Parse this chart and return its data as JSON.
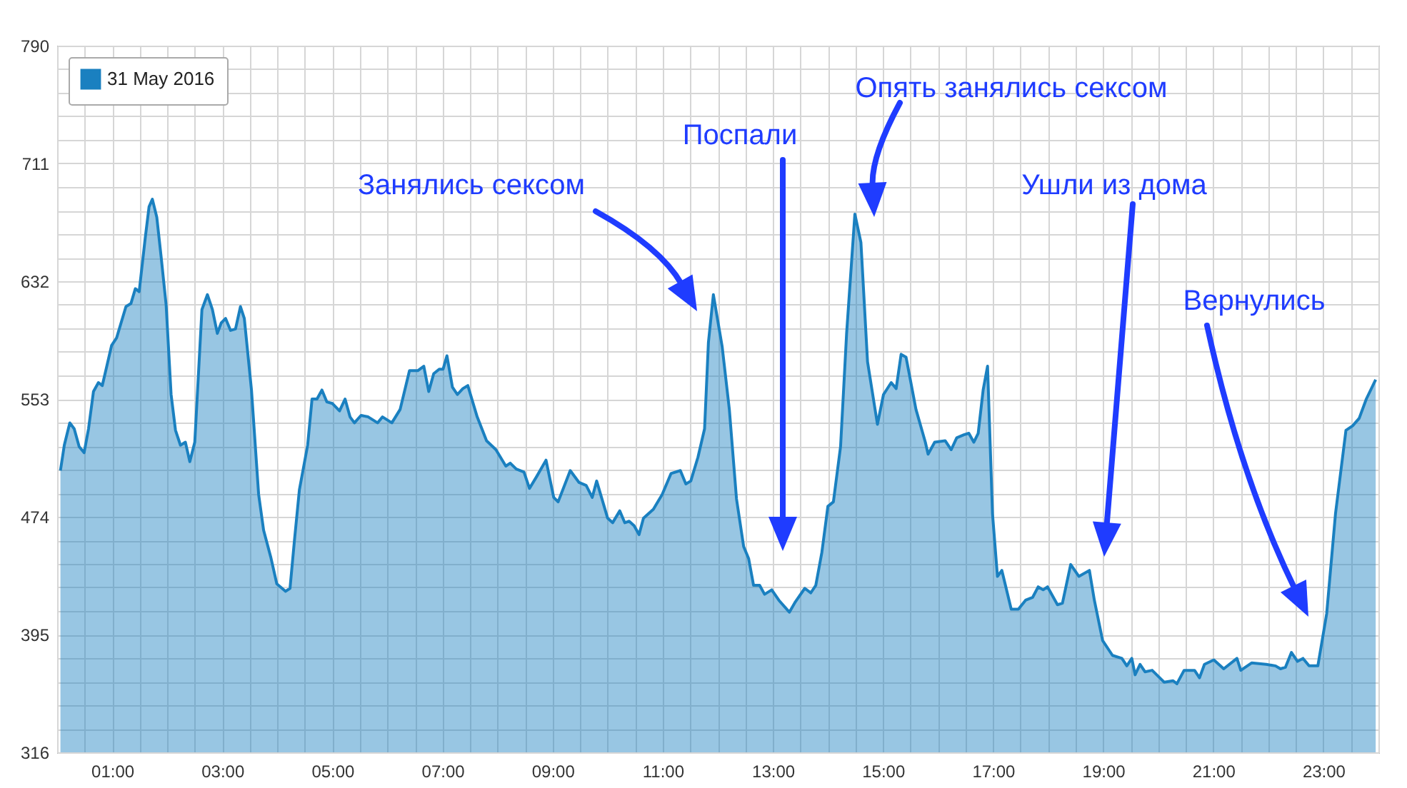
{
  "chart_data": {
    "type": "area",
    "x": [
      0.06,
      0.13,
      0.23,
      0.31,
      0.4,
      0.49,
      0.57,
      0.66,
      0.75,
      0.82,
      0.99,
      1.08,
      1.25,
      1.34,
      1.42,
      1.49,
      1.6,
      1.67,
      1.73,
      1.81,
      1.89,
      1.98,
      2.07,
      2.15,
      2.24,
      2.33,
      2.41,
      2.5,
      2.63,
      2.73,
      2.82,
      2.91,
      2.98,
      3.06,
      3.15,
      3.24,
      3.33,
      3.4,
      3.53,
      3.66,
      3.75,
      3.88,
      3.99,
      4.15,
      4.23,
      4.31,
      4.4,
      4.55,
      4.63,
      4.72,
      4.81,
      4.9,
      5.0,
      5.13,
      5.23,
      5.32,
      5.4,
      5.52,
      5.65,
      5.82,
      5.91,
      6.08,
      6.23,
      6.4,
      6.55,
      6.66,
      6.75,
      6.84,
      6.94,
      7.01,
      7.08,
      7.18,
      7.27,
      7.37,
      7.46,
      7.63,
      7.8,
      7.97,
      8.15,
      8.23,
      8.34,
      8.48,
      8.58,
      8.71,
      8.88,
      9.02,
      9.1,
      9.32,
      9.48,
      9.61,
      9.72,
      9.8,
      10.0,
      10.09,
      10.22,
      10.31,
      10.39,
      10.48,
      10.57,
      10.65,
      10.83,
      10.99,
      11.15,
      11.32,
      11.42,
      11.51,
      11.64,
      11.76,
      11.83,
      11.92,
      12.08,
      12.21,
      12.34,
      12.47,
      12.56,
      12.65,
      12.76,
      12.85,
      12.98,
      13.11,
      13.3,
      13.41,
      13.58,
      13.69,
      13.78,
      13.89,
      14.0,
      14.1,
      14.23,
      14.34,
      14.49,
      14.6,
      14.72,
      14.9,
      15.01,
      15.15,
      15.24,
      15.33,
      15.42,
      15.6,
      15.77,
      15.82,
      15.94,
      16.13,
      16.24,
      16.34,
      16.47,
      16.56,
      16.65,
      16.73,
      16.82,
      16.9,
      16.99,
      17.08,
      17.16,
      17.33,
      17.46,
      17.59,
      17.72,
      17.82,
      17.91,
      17.99,
      18.17,
      18.26,
      18.41,
      18.56,
      18.75,
      18.84,
      18.99,
      19.17,
      19.34,
      19.43,
      19.52,
      19.58,
      19.67,
      19.76,
      19.89,
      20.11,
      20.27,
      20.34,
      20.47,
      20.66,
      20.75,
      20.84,
      21.01,
      21.19,
      21.43,
      21.5,
      21.7,
      21.96,
      22.13,
      22.22,
      22.31,
      22.42,
      22.53,
      22.63,
      22.74,
      22.9,
      23.06,
      23.22,
      23.41,
      23.53,
      23.65,
      23.78,
      23.95
    ],
    "series": [
      {
        "name": "31 May 2016",
        "color": "#1a80c0",
        "values": [
          505,
          522,
          537,
          533,
          521,
          517,
          533,
          558,
          564,
          562,
          589,
          594,
          615,
          617,
          627,
          625,
          661,
          682,
          687,
          675,
          648,
          616,
          556,
          532,
          522,
          524,
          511,
          524,
          613,
          623,
          613,
          597,
          604,
          607,
          599,
          600,
          615,
          607,
          559,
          489,
          465,
          447,
          429,
          424,
          426,
          458,
          492,
          522,
          553,
          553,
          559,
          551,
          550,
          545,
          553,
          541,
          537,
          542,
          541,
          537,
          541,
          537,
          546,
          572,
          572,
          575,
          558,
          570,
          573,
          573,
          582,
          561,
          556,
          560,
          562,
          541,
          525,
          519,
          508,
          510,
          506,
          504,
          493,
          501,
          512,
          487,
          484,
          505,
          497,
          495,
          487,
          498,
          473,
          470,
          478,
          470,
          471,
          468,
          462,
          473,
          479,
          489,
          503,
          505,
          496,
          498,
          514,
          533,
          591,
          623,
          588,
          546,
          486,
          454,
          446,
          428,
          428,
          422,
          425,
          418,
          410,
          417,
          426,
          423,
          428,
          450,
          481,
          484,
          521,
          597,
          677,
          658,
          578,
          536,
          556,
          564,
          560,
          583,
          581,
          546,
          524,
          516,
          524,
          525,
          519,
          527,
          529,
          530,
          524,
          530,
          559,
          575,
          476,
          434,
          438,
          412,
          412,
          418,
          420,
          427,
          425,
          427,
          415,
          416,
          442,
          434,
          438,
          418,
          391,
          381,
          379,
          374,
          379,
          368,
          375,
          370,
          371,
          363,
          364,
          362,
          371,
          371,
          366,
          375,
          378,
          372,
          379,
          371,
          376,
          375,
          374,
          372,
          373,
          383,
          377,
          379,
          374,
          374,
          409,
          476,
          532,
          535,
          540,
          553,
          566
        ]
      }
    ],
    "xlim": [
      0,
      24
    ],
    "xticks": [
      {
        "value": 0,
        "label": null
      },
      {
        "value": 0.5,
        "label": null
      },
      {
        "value": 1,
        "label": "01:00"
      },
      {
        "value": 1.5,
        "label": null
      },
      {
        "value": 2,
        "label": null
      },
      {
        "value": 2.5,
        "label": null
      },
      {
        "value": 3,
        "label": "03:00"
      },
      {
        "value": 3.5,
        "label": null
      },
      {
        "value": 4,
        "label": null
      },
      {
        "value": 4.5,
        "label": null
      },
      {
        "value": 5,
        "label": "05:00"
      },
      {
        "value": 5.5,
        "label": null
      },
      {
        "value": 6,
        "label": null
      },
      {
        "value": 6.5,
        "label": null
      },
      {
        "value": 7,
        "label": "07:00"
      },
      {
        "value": 7.5,
        "label": null
      },
      {
        "value": 8,
        "label": null
      },
      {
        "value": 8.5,
        "label": null
      },
      {
        "value": 9,
        "label": "09:00"
      },
      {
        "value": 9.5,
        "label": null
      },
      {
        "value": 10,
        "label": null
      },
      {
        "value": 10.5,
        "label": null
      },
      {
        "value": 11,
        "label": "11:00"
      },
      {
        "value": 11.5,
        "label": null
      },
      {
        "value": 12,
        "label": null
      },
      {
        "value": 12.5,
        "label": null
      },
      {
        "value": 13,
        "label": "13:00"
      },
      {
        "value": 13.5,
        "label": null
      },
      {
        "value": 14,
        "label": null
      },
      {
        "value": 14.5,
        "label": null
      },
      {
        "value": 15,
        "label": "15:00"
      },
      {
        "value": 15.5,
        "label": null
      },
      {
        "value": 16,
        "label": null
      },
      {
        "value": 16.5,
        "label": null
      },
      {
        "value": 17,
        "label": "17:00"
      },
      {
        "value": 17.5,
        "label": null
      },
      {
        "value": 18,
        "label": null
      },
      {
        "value": 18.5,
        "label": null
      },
      {
        "value": 19,
        "label": "19:00"
      },
      {
        "value": 19.5,
        "label": null
      },
      {
        "value": 20,
        "label": null
      },
      {
        "value": 20.5,
        "label": null
      },
      {
        "value": 21,
        "label": "21:00"
      },
      {
        "value": 21.5,
        "label": null
      },
      {
        "value": 22,
        "label": null
      },
      {
        "value": 22.5,
        "label": null
      },
      {
        "value": 23,
        "label": "23:00"
      },
      {
        "value": 23.5,
        "label": null
      },
      {
        "value": 24,
        "label": null
      }
    ],
    "ylim": [
      316,
      790
    ],
    "yticks": [
      316,
      {
        "value": 331.8,
        "label": null
      },
      {
        "value": 347.6,
        "label": null
      },
      {
        "value": 363.4,
        "label": null
      },
      {
        "value": 379.2,
        "label": null
      },
      395,
      {
        "value": 410.8,
        "label": null
      },
      {
        "value": 426.6,
        "label": null
      },
      {
        "value": 442.4,
        "label": null
      },
      {
        "value": 458.2,
        "label": null
      },
      474,
      {
        "value": 489.8,
        "label": null
      },
      {
        "value": 505.6,
        "label": null
      },
      {
        "value": 521.4,
        "label": null
      },
      {
        "value": 537.2,
        "label": null
      },
      553,
      {
        "value": 568.8,
        "label": null
      },
      {
        "value": 584.6,
        "label": null
      },
      {
        "value": 600.4,
        "label": null
      },
      {
        "value": 616.2,
        "label": null
      },
      632,
      {
        "value": 647.8,
        "label": null
      },
      {
        "value": 663.6,
        "label": null
      },
      {
        "value": 679.4,
        "label": null
      },
      {
        "value": 695.2,
        "label": null
      },
      711,
      {
        "value": 726.8,
        "label": null
      },
      {
        "value": 742.6,
        "label": null
      },
      {
        "value": 758.4,
        "label": null
      },
      {
        "value": 774.2,
        "label": null
      },
      790
    ],
    "grid": true,
    "legend": "top left",
    "annotations": [
      "Занялись сексом",
      "Поспали",
      "Опять занялись сексом",
      "Ушли из дома",
      "Вернулись"
    ]
  }
}
